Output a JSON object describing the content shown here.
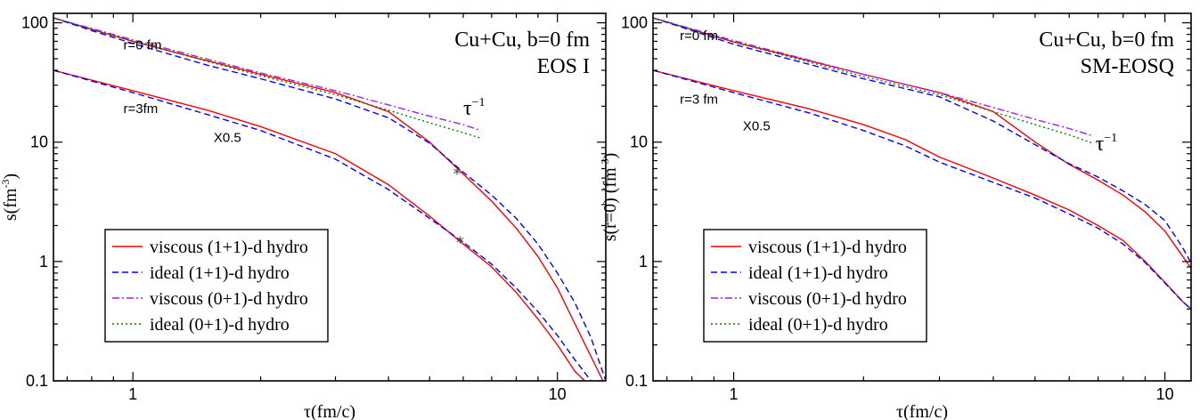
{
  "chart_data": [
    {
      "type": "line",
      "xscale": "log",
      "yscale": "log",
      "xlim": [
        0.65,
        13.0
      ],
      "ylim": [
        0.1,
        120
      ],
      "xlabel": "τ(fm/c)",
      "ylabel_main": "s(fm",
      "ylabel_sup": "-3",
      "ylabel_tail": ")",
      "xticks": [
        {
          "v": 1,
          "label": "1"
        },
        {
          "v": 10,
          "label": "10"
        }
      ],
      "yticks": [
        {
          "v": 0.1,
          "label": "0.1"
        },
        {
          "v": 1,
          "label": "1"
        },
        {
          "v": 10,
          "label": "10"
        },
        {
          "v": 100,
          "label": "100"
        }
      ],
      "title_line1": "Cu+Cu, b=0 fm",
      "title_line2": "EOS I",
      "annotations": {
        "r0": {
          "text": "r=0 fm",
          "x": 0.95,
          "y": 60
        },
        "r3": {
          "text": "r=3fm",
          "x": 0.95,
          "y": 17.5
        },
        "scale": {
          "text": "X0.5",
          "x": 1.55,
          "y": 10
        },
        "tau": {
          "main": "τ",
          "sup": "−1",
          "x": 6.0,
          "y": 17
        }
      },
      "markers": [
        {
          "x": 5.8,
          "y": 5.5,
          "symbol": "*"
        },
        {
          "x": 5.9,
          "y": 1.47,
          "symbol": "*"
        }
      ],
      "legend_entries": [
        "viscous (1+1)-d hydro",
        "ideal (1+1)-d hydro",
        "viscous (0+1)-d hydro",
        "ideal (0+1)-d hydro"
      ],
      "series": [
        {
          "style": "viscous11",
          "points": [
            [
              0.65,
              110
            ],
            [
              0.8,
              88
            ],
            [
              1.0,
              70
            ],
            [
              1.5,
              48
            ],
            [
              2.0,
              37
            ],
            [
              3.0,
              26
            ],
            [
              4.0,
              18
            ],
            [
              5.0,
              10
            ],
            [
              6.0,
              5.4
            ],
            [
              7.0,
              3.2
            ],
            [
              8.0,
              1.9
            ],
            [
              9.0,
              1.1
            ],
            [
              10,
              0.6
            ],
            [
              11,
              0.3
            ],
            [
              12,
              0.16
            ],
            [
              12.8,
              0.1
            ]
          ]
        },
        {
          "style": "ideal11",
          "points": [
            [
              0.65,
              110
            ],
            [
              0.8,
              86
            ],
            [
              1.0,
              67
            ],
            [
              1.5,
              44
            ],
            [
              2.0,
              34
            ],
            [
              3.0,
              23
            ],
            [
              4.0,
              16
            ],
            [
              5.0,
              9.8
            ],
            [
              6.0,
              5.6
            ],
            [
              7.0,
              3.6
            ],
            [
              8.0,
              2.3
            ],
            [
              9.0,
              1.4
            ],
            [
              10,
              0.8
            ],
            [
              11,
              0.45
            ],
            [
              12,
              0.23
            ],
            [
              13,
              0.1
            ]
          ]
        },
        {
          "style": "viscous01",
          "points": [
            [
              0.65,
              110
            ],
            [
              1.0,
              72
            ],
            [
              2.0,
              38
            ],
            [
              3.0,
              27
            ],
            [
              4.0,
              20.5
            ],
            [
              5.0,
              16.5
            ],
            [
              6.0,
              14
            ],
            [
              6.6,
              12.5
            ]
          ]
        },
        {
          "style": "ideal01",
          "points": [
            [
              0.65,
              110
            ],
            [
              1.0,
              70
            ],
            [
              2.0,
              36
            ],
            [
              3.0,
              25
            ],
            [
              4.0,
              18.5
            ],
            [
              5.0,
              14.5
            ],
            [
              6.0,
              12
            ],
            [
              6.6,
              10.8
            ]
          ]
        },
        {
          "style": "viscous11",
          "points": [
            [
              0.65,
              40
            ],
            [
              1.0,
              27
            ],
            [
              1.5,
              18.5
            ],
            [
              2.0,
              13.5
            ],
            [
              3.0,
              8
            ],
            [
              4.0,
              4.4
            ],
            [
              5.0,
              2.4
            ],
            [
              6.0,
              1.4
            ],
            [
              7.0,
              0.9
            ],
            [
              8.0,
              0.55
            ],
            [
              9.0,
              0.33
            ],
            [
              10,
              0.2
            ],
            [
              11,
              0.12
            ],
            [
              11.6,
              0.1
            ]
          ]
        },
        {
          "style": "ideal11",
          "points": [
            [
              0.65,
              40
            ],
            [
              1.0,
              26
            ],
            [
              1.5,
              17
            ],
            [
              2.0,
              12.5
            ],
            [
              3.0,
              7.2
            ],
            [
              4.0,
              4.0
            ],
            [
              5.0,
              2.3
            ],
            [
              6.0,
              1.45
            ],
            [
              7.0,
              0.95
            ],
            [
              8.0,
              0.6
            ],
            [
              9.0,
              0.38
            ],
            [
              10,
              0.24
            ],
            [
              11,
              0.15
            ],
            [
              12,
              0.1
            ]
          ]
        }
      ]
    },
    {
      "type": "line",
      "xscale": "log",
      "yscale": "log",
      "xlim": [
        0.65,
        11.5
      ],
      "ylim": [
        0.1,
        120
      ],
      "xlabel": "τ(fm/c)",
      "ylabel_main": "s(r=0) (fm",
      "ylabel_sup": "-3",
      "ylabel_tail": ")",
      "xticks": [
        {
          "v": 1,
          "label": "1"
        },
        {
          "v": 10,
          "label": "10"
        }
      ],
      "yticks": [
        {
          "v": 0.1,
          "label": "0.1"
        },
        {
          "v": 1,
          "label": "1"
        },
        {
          "v": 10,
          "label": "10"
        },
        {
          "v": 100,
          "label": "100"
        }
      ],
      "title_line1": "Cu+Cu, b=0 fm",
      "title_line2": "SM-EOSQ",
      "annotations": {
        "r0": {
          "text": "r=0 fm",
          "x": 0.75,
          "y": 72
        },
        "r3": {
          "text": "r=3 fm",
          "x": 0.75,
          "y": 21
        },
        "scale": {
          "text": "X0.5",
          "x": 1.05,
          "y": 12.5
        },
        "tau": {
          "main": "τ",
          "sup": "−1",
          "x": 6.9,
          "y": 8.5
        }
      },
      "markers": [],
      "legend_entries": [
        "viscous (1+1)-d hydro",
        "ideal (1+1)-d hydro",
        "viscous (0+1)-d hydro",
        "ideal (0+1)-d hydro"
      ],
      "series": [
        {
          "style": "viscous11",
          "points": [
            [
              0.65,
              110
            ],
            [
              1.0,
              69
            ],
            [
              2.0,
              37
            ],
            [
              3.0,
              26
            ],
            [
              4.0,
              18
            ],
            [
              5.0,
              10
            ],
            [
              6.0,
              6.5
            ],
            [
              7.0,
              4.8
            ],
            [
              8.0,
              3.6
            ],
            [
              9.0,
              2.6
            ],
            [
              10,
              1.8
            ],
            [
              11,
              1.1
            ],
            [
              11.5,
              0.88
            ]
          ]
        },
        {
          "style": "ideal11",
          "points": [
            [
              0.65,
              110
            ],
            [
              1.0,
              66
            ],
            [
              2.0,
              34
            ],
            [
              3.0,
              24
            ],
            [
              4.0,
              15
            ],
            [
              5.0,
              9.5
            ],
            [
              6.0,
              6.6
            ],
            [
              7.0,
              5.1
            ],
            [
              8.0,
              3.9
            ],
            [
              9.0,
              3.0
            ],
            [
              10,
              2.2
            ],
            [
              11,
              1.3
            ],
            [
              11.5,
              0.97
            ]
          ]
        },
        {
          "style": "viscous01",
          "points": [
            [
              0.65,
              110
            ],
            [
              1.0,
              71
            ],
            [
              2.0,
              37
            ],
            [
              3.0,
              26
            ],
            [
              4.0,
              19.5
            ],
            [
              5.0,
              15.5
            ],
            [
              6.0,
              13
            ],
            [
              6.8,
              11.3
            ]
          ]
        },
        {
          "style": "ideal01",
          "points": [
            [
              0.65,
              110
            ],
            [
              1.0,
              69
            ],
            [
              2.0,
              35.5
            ],
            [
              3.0,
              25
            ],
            [
              4.0,
              18
            ],
            [
              5.0,
              14
            ],
            [
              6.0,
              11.5
            ],
            [
              6.8,
              9.8
            ]
          ]
        },
        {
          "style": "viscous11",
          "points": [
            [
              0.65,
              40
            ],
            [
              1.0,
              27
            ],
            [
              1.5,
              19
            ],
            [
              2.0,
              14
            ],
            [
              2.5,
              10.5
            ],
            [
              3.0,
              7.5
            ],
            [
              4.0,
              5.0
            ],
            [
              5.0,
              3.6
            ],
            [
              6.0,
              2.7
            ],
            [
              7.0,
              2.0
            ],
            [
              8.0,
              1.5
            ],
            [
              9.0,
              1.0
            ],
            [
              10,
              0.67
            ],
            [
              11,
              0.46
            ],
            [
              11.5,
              0.4
            ]
          ]
        },
        {
          "style": "ideal11",
          "points": [
            [
              0.65,
              40
            ],
            [
              1.0,
              26
            ],
            [
              1.5,
              17.5
            ],
            [
              2.0,
              12.5
            ],
            [
              2.5,
              9.3
            ],
            [
              3.0,
              6.8
            ],
            [
              4.0,
              4.6
            ],
            [
              5.0,
              3.4
            ],
            [
              6.0,
              2.5
            ],
            [
              7.0,
              1.9
            ],
            [
              8.0,
              1.4
            ],
            [
              9.0,
              0.98
            ],
            [
              10,
              0.66
            ],
            [
              11,
              0.46
            ],
            [
              11.5,
              0.4
            ]
          ]
        }
      ]
    }
  ],
  "styles": {
    "viscous11": {
      "color": "#ff0000",
      "dash": ""
    },
    "ideal11": {
      "color": "#0000ff",
      "dash": "7,4"
    },
    "viscous01": {
      "color": "#a020f0",
      "dash": "8,3,2,3"
    },
    "ideal01": {
      "color": "#008000",
      "dash": "2,3"
    }
  }
}
